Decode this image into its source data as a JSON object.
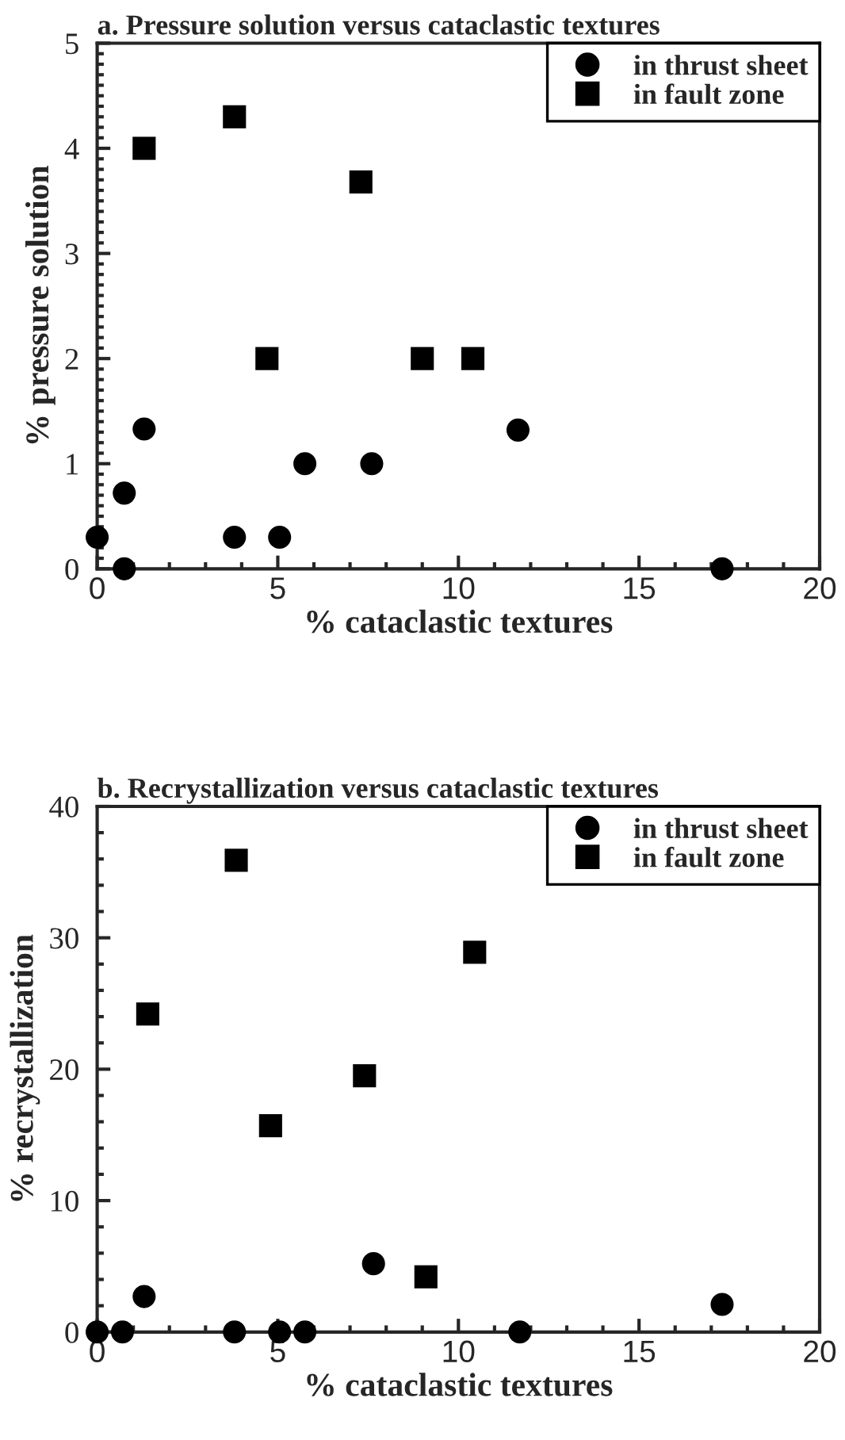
{
  "chart_data": [
    {
      "type": "scatter",
      "title": "a. Pressure solution versus cataclastic textures",
      "xlabel": "% cataclastic textures",
      "ylabel": "% pressure solution",
      "xlim": [
        0,
        20
      ],
      "ylim": [
        0,
        5
      ],
      "xticks": [
        0,
        5,
        10,
        15,
        20
      ],
      "yticks": [
        0,
        1,
        2,
        3,
        4,
        5
      ],
      "grid": false,
      "legend": "top right",
      "series": [
        {
          "name": "in thrust sheet",
          "color": "#000000",
          "marker": "circle",
          "x": [
            0,
            0.75,
            0.75,
            1.3,
            3.8,
            5.05,
            5.75,
            7.6,
            11.65,
            17.3
          ],
          "values": [
            0.3,
            0,
            0.72,
            1.33,
            0.3,
            0.3,
            1.0,
            1.0,
            1.32,
            0
          ]
        },
        {
          "name": "in fault zone",
          "color": "#000000",
          "marker": "square",
          "x": [
            1.3,
            3.8,
            7.3,
            4.7,
            9.0,
            10.4
          ],
          "values": [
            4.0,
            4.3,
            3.68,
            2.0,
            2.0,
            2.0
          ]
        }
      ]
    },
    {
      "type": "scatter",
      "title": "b. Recrystallization versus cataclastic textures",
      "xlabel": "% cataclastic textures",
      "ylabel": "% recrystallization",
      "xlim": [
        0,
        20
      ],
      "ylim": [
        0,
        40
      ],
      "xticks": [
        0,
        5,
        10,
        15,
        20
      ],
      "yticks": [
        0,
        10,
        20,
        30,
        40
      ],
      "grid": false,
      "legend": "top right",
      "series": [
        {
          "name": "in thrust sheet",
          "color": "#000000",
          "marker": "circle",
          "x": [
            0,
            0.7,
            1.3,
            3.8,
            5.05,
            5.75,
            7.65,
            11.7,
            17.3
          ],
          "values": [
            0,
            0,
            2.7,
            0,
            0,
            0,
            5.2,
            0,
            2.1
          ]
        },
        {
          "name": "in fault zone",
          "color": "#000000",
          "marker": "square",
          "x": [
            1.4,
            3.85,
            4.8,
            7.4,
            9.1,
            10.45
          ],
          "values": [
            24.2,
            35.9,
            15.7,
            19.5,
            4.2,
            28.9
          ]
        }
      ]
    }
  ]
}
